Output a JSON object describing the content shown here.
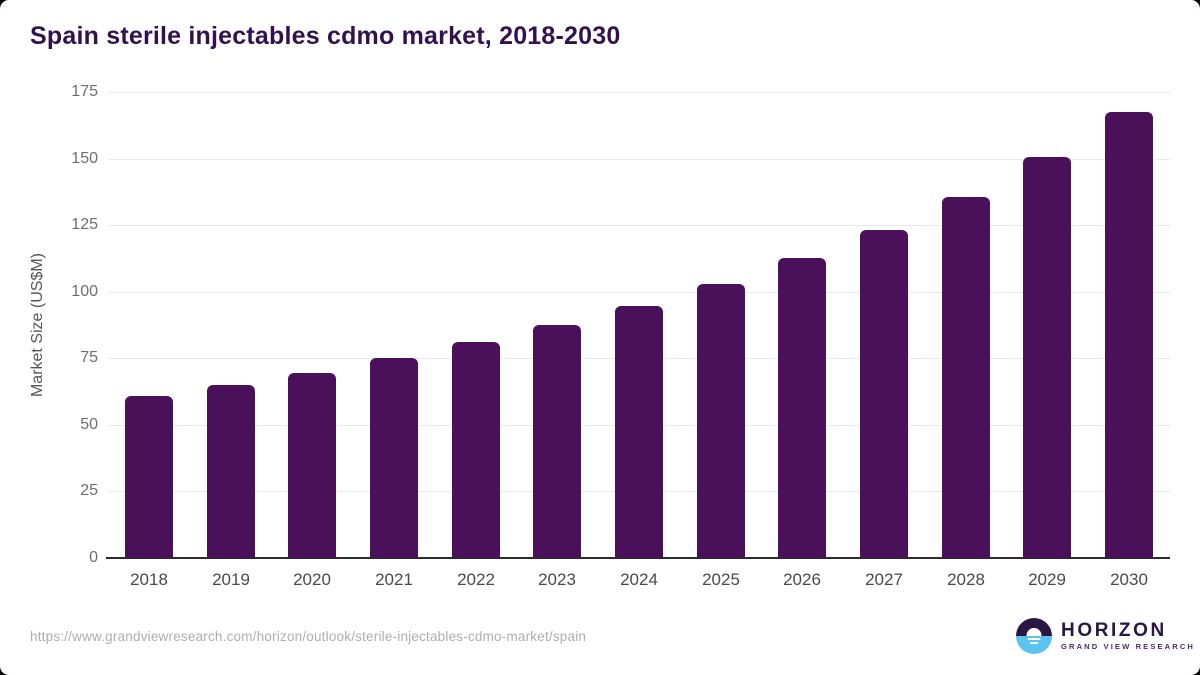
{
  "title": "Spain sterile injectables cdmo market, 2018-2030",
  "chart_data": {
    "type": "bar",
    "title": "Spain sterile injectables cdmo market, 2018-2030",
    "categories": [
      "2018",
      "2019",
      "2020",
      "2021",
      "2022",
      "2023",
      "2024",
      "2025",
      "2026",
      "2027",
      "2028",
      "2029",
      "2030"
    ],
    "values": [
      61,
      65,
      69.5,
      75,
      81,
      87.5,
      94.5,
      103,
      112.5,
      123,
      135.5,
      150.5,
      167.5
    ],
    "xlabel": "",
    "ylabel": "Market Size (US$M)",
    "ylim": [
      0,
      175
    ],
    "yticks": [
      0,
      25,
      50,
      75,
      100,
      125,
      150,
      175
    ],
    "grid": "horizontal",
    "legend": "none",
    "bar_color": "#4a1059"
  },
  "colors": {
    "bar": "#4a1059",
    "title_text": "#32114f",
    "gridline": "#e9e9e9",
    "axis_line": "#2b2b2b",
    "logo_purple": "#2b1744",
    "logo_blue": "#5ac3ef"
  },
  "footer": {
    "source_url": "https://www.grandviewresearch.com/horizon/outlook/sterile-injectables-cdmo-market/spain",
    "logo_name": "HORIZON",
    "logo_tagline": "GRAND VIEW RESEARCH"
  }
}
